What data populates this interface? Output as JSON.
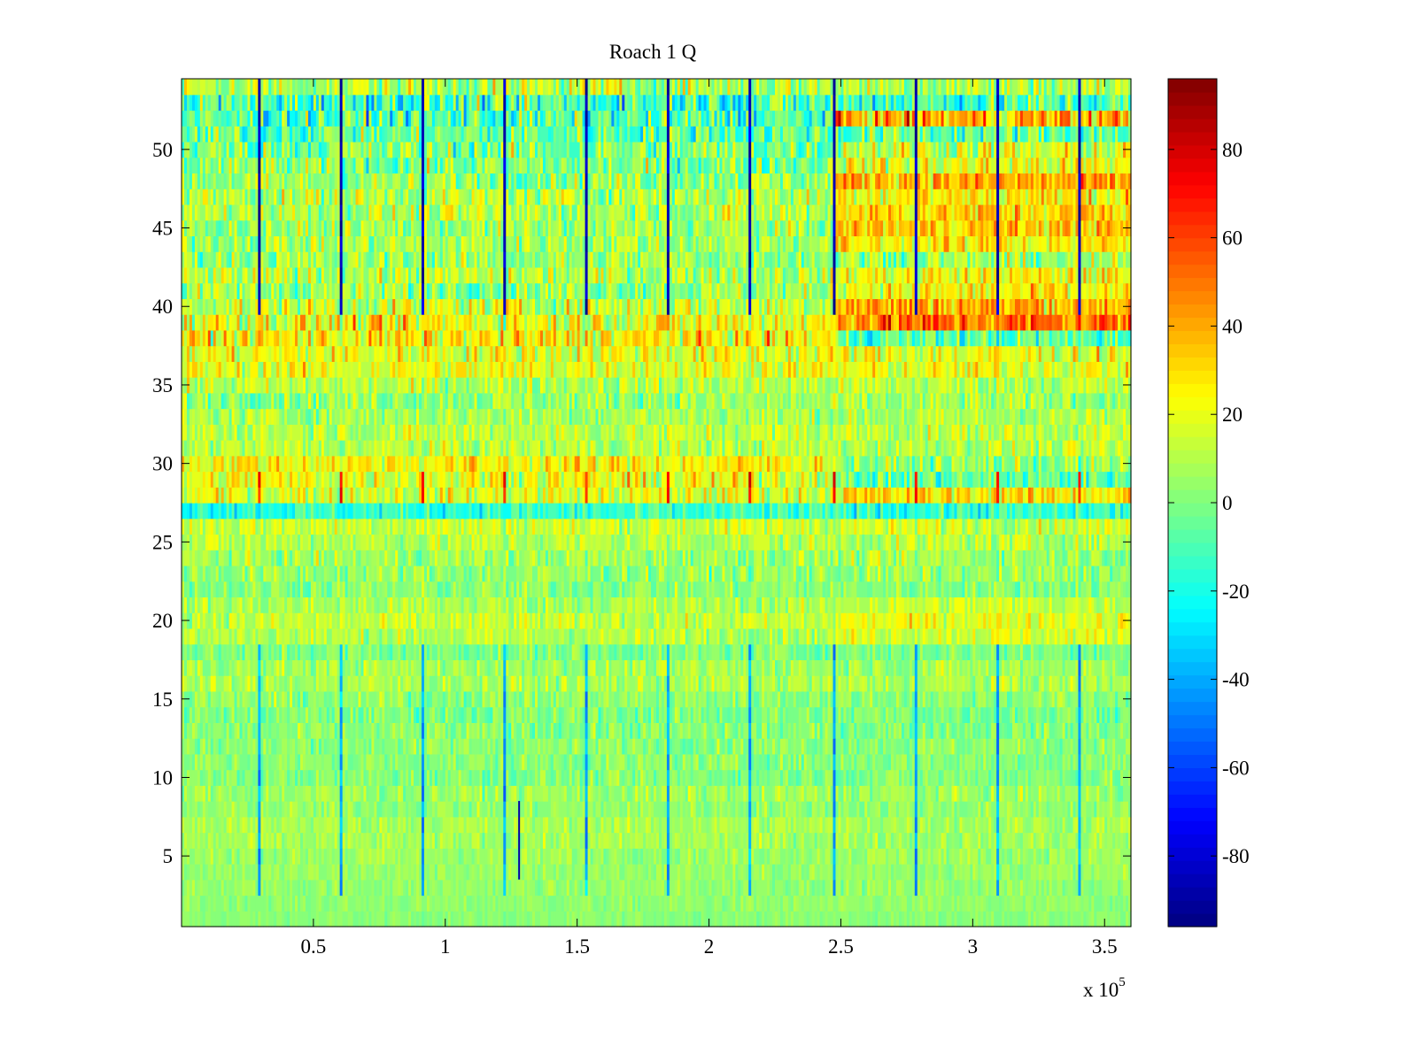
{
  "chart_data": {
    "type": "heatmap",
    "title": "Roach 1 Q",
    "xlabel": "",
    "ylabel": "",
    "x_multiplier_label": "x 10",
    "x_multiplier_exponent": "5",
    "xlim": [
      0,
      3.6
    ],
    "ylim": [
      0.5,
      54.5
    ],
    "x_ticks": [
      0.5,
      1,
      1.5,
      2,
      2.5,
      3,
      3.5
    ],
    "x_tick_labels": [
      "0.5",
      "1",
      "1.5",
      "2",
      "2.5",
      "3",
      "3.5"
    ],
    "y_ticks": [
      5,
      10,
      15,
      20,
      25,
      30,
      35,
      40,
      45,
      50
    ],
    "y_tick_labels": [
      "5",
      "10",
      "15",
      "20",
      "25",
      "30",
      "35",
      "40",
      "45",
      "50"
    ],
    "rows": 54,
    "columns": 360,
    "colormap": "jet",
    "clim": [
      -96,
      96
    ],
    "colorbar": {
      "ticks": [
        -80,
        -60,
        -40,
        -20,
        0,
        20,
        40,
        60,
        80
      ],
      "tick_labels": [
        "-80",
        "-60",
        "-40",
        "-20",
        "0",
        "20",
        "40",
        "60",
        "80"
      ],
      "levels": 64
    },
    "row_baseline_values": [
      2,
      3,
      4,
      5,
      6,
      7,
      8,
      4,
      6,
      1,
      2,
      3,
      1,
      0,
      3,
      8,
      7,
      0,
      10,
      12,
      8,
      2,
      4,
      6,
      10,
      15,
      -15,
      18,
      20,
      25,
      10,
      12,
      8,
      5,
      10,
      20,
      20,
      25,
      22,
      15,
      5,
      10,
      5,
      8,
      5,
      10,
      10,
      5,
      0,
      0,
      -5,
      -10,
      -10,
      10
    ],
    "row_spread_values": [
      4,
      5,
      6,
      6,
      7,
      8,
      8,
      8,
      9,
      9,
      9,
      9,
      10,
      10,
      10,
      10,
      10,
      10,
      11,
      11,
      11,
      11,
      12,
      12,
      12,
      13,
      14,
      16,
      18,
      16,
      13,
      13,
      13,
      14,
      14,
      15,
      18,
      20,
      22,
      20,
      18,
      17,
      17,
      16,
      16,
      17,
      18,
      18,
      20,
      22,
      22,
      24,
      26,
      20
    ],
    "late_segment": {
      "x_start": 2.48,
      "x_end": 3.6,
      "rows": [
        19,
        20,
        21,
        28,
        29,
        30,
        38,
        39,
        40,
        41,
        42,
        44,
        45,
        46,
        47,
        48,
        49,
        50,
        52
      ],
      "shift_values": [
        10,
        12,
        8,
        15,
        -20,
        -15,
        -25,
        35,
        30,
        20,
        15,
        20,
        30,
        25,
        20,
        35,
        20,
        15,
        45
      ]
    },
    "spike_columns_x": [
      0.29,
      0.6,
      0.91,
      1.22,
      1.53,
      1.84,
      2.15,
      2.47,
      2.78,
      3.09,
      3.4
    ],
    "spike_values": {
      "upper_rows": -85,
      "row_29": 70,
      "lower_rows": -40
    },
    "notable_marks": [
      {
        "x": 1.28,
        "y_range": [
          3.5,
          8.5
        ],
        "value": -90
      }
    ]
  }
}
